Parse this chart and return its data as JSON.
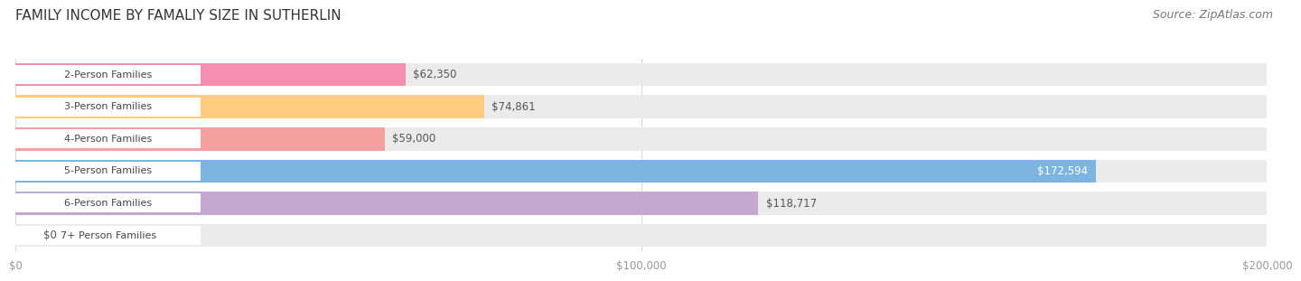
{
  "title": "FAMILY INCOME BY FAMALIY SIZE IN SUTHERLIN",
  "source": "Source: ZipAtlas.com",
  "categories": [
    "2-Person Families",
    "3-Person Families",
    "4-Person Families",
    "5-Person Families",
    "6-Person Families",
    "7+ Person Families"
  ],
  "values": [
    62350,
    74861,
    59000,
    172594,
    118717,
    0
  ],
  "labels": [
    "$62,350",
    "$74,861",
    "$59,000",
    "$172,594",
    "$118,717",
    "$0"
  ],
  "bar_colors": [
    "#F48FB1",
    "#FFCC80",
    "#F4A0A0",
    "#7EB5E0",
    "#C5A8D0",
    "#80D4D4"
  ],
  "label_colors": [
    "#555555",
    "#555555",
    "#555555",
    "#ffffff",
    "#555555",
    "#555555"
  ],
  "xmax": 200000,
  "xtick_labels": [
    "$0",
    "$100,000",
    "$200,000"
  ],
  "xtick_values": [
    0,
    100000,
    200000
  ],
  "background_color": "#ffffff",
  "title_fontsize": 11,
  "source_fontsize": 9,
  "bar_label_fontsize": 8.5,
  "category_fontsize": 8,
  "tick_fontsize": 8.5
}
